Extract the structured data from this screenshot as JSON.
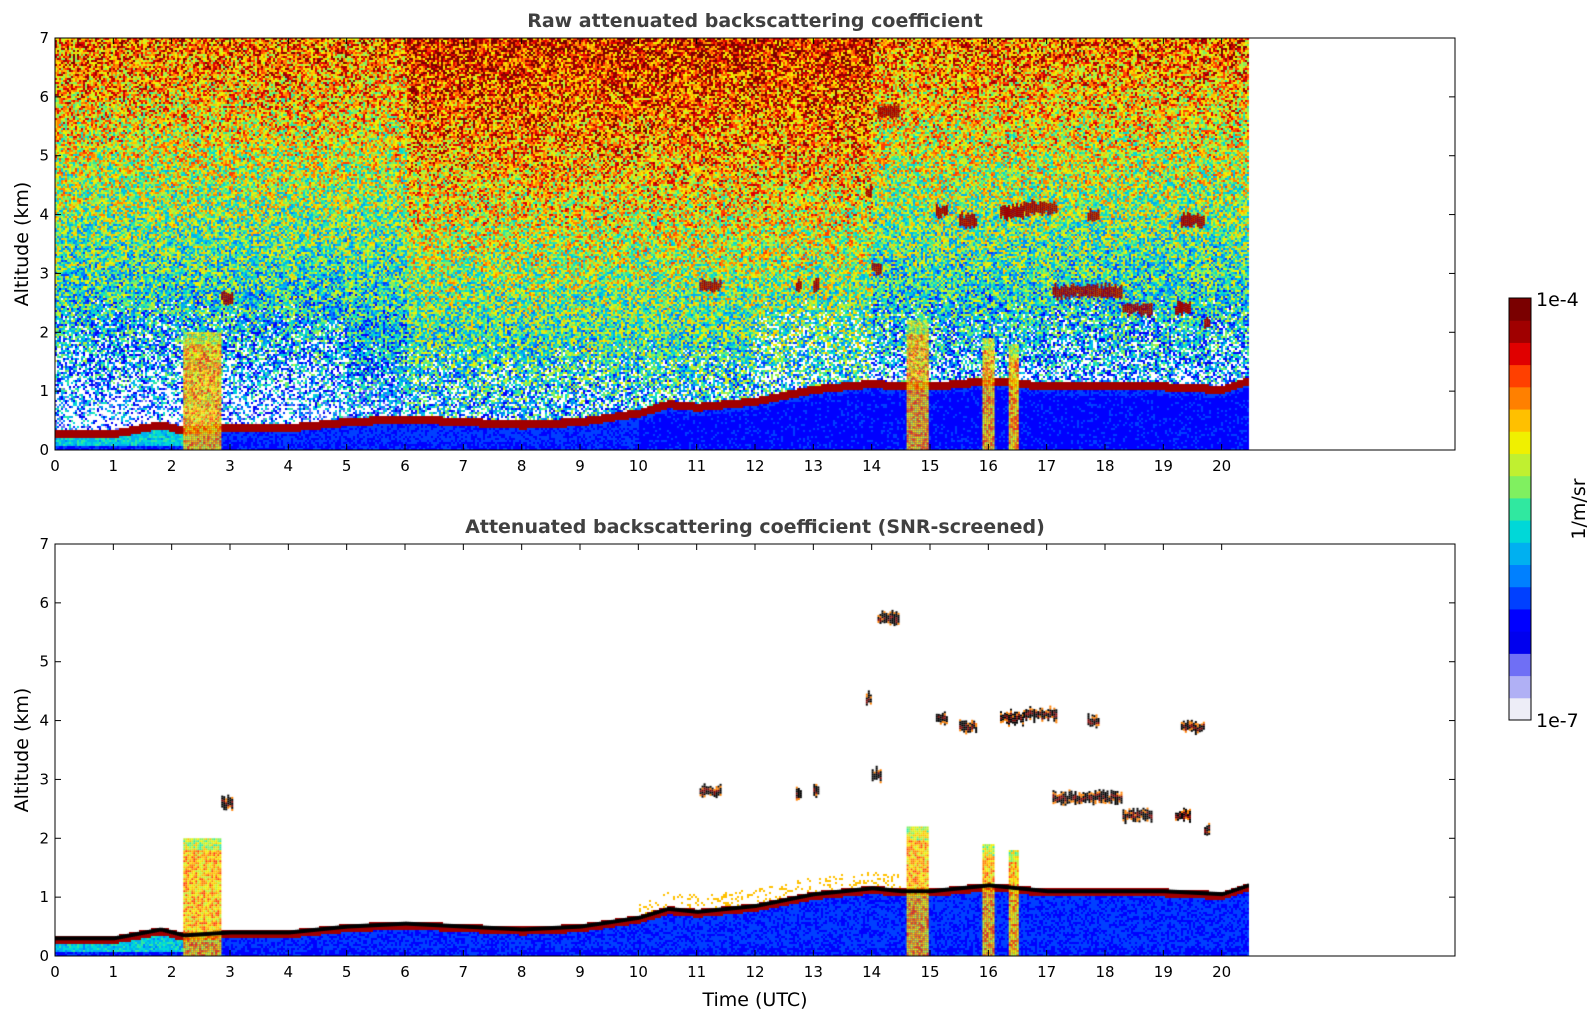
{
  "chart_data": [
    {
      "type": "heatmap",
      "title": "Raw attenuated backscattering coefficient",
      "xlabel": "",
      "ylabel": "Altitude (km)",
      "xlim": [
        0,
        24
      ],
      "ylim": [
        0,
        7
      ],
      "xticks": [
        "0",
        "1",
        "2",
        "3",
        "4",
        "5",
        "6",
        "7",
        "8",
        "9",
        "10",
        "11",
        "12",
        "13",
        "14",
        "15",
        "16",
        "17",
        "18",
        "19",
        "20"
      ],
      "yticks": [
        "0",
        "1",
        "2",
        "3",
        "4",
        "5",
        "6",
        "7"
      ],
      "data_end_time": 20.45,
      "boundary_layer_top_km": [
        [
          0,
          0.3
        ],
        [
          1,
          0.3
        ],
        [
          1.8,
          0.45
        ],
        [
          2.2,
          0.35
        ],
        [
          3,
          0.4
        ],
        [
          4,
          0.4
        ],
        [
          5,
          0.5
        ],
        [
          6,
          0.55
        ],
        [
          7,
          0.5
        ],
        [
          8,
          0.45
        ],
        [
          9,
          0.5
        ],
        [
          10,
          0.65
        ],
        [
          10.5,
          0.8
        ],
        [
          11,
          0.75
        ],
        [
          12,
          0.85
        ],
        [
          13,
          1.05
        ],
        [
          14,
          1.15
        ],
        [
          14.5,
          1.1
        ],
        [
          15,
          1.1
        ],
        [
          16,
          1.2
        ],
        [
          17,
          1.1
        ],
        [
          18,
          1.1
        ],
        [
          19,
          1.1
        ],
        [
          20,
          1.05
        ],
        [
          20.45,
          1.2
        ]
      ],
      "precipitation_columns_h": [
        [
          2.2,
          2.85,
          2.0
        ],
        [
          14.6,
          14.95,
          2.2
        ],
        [
          15.9,
          16.1,
          1.9
        ],
        [
          16.35,
          16.5,
          1.8
        ]
      ],
      "cloud_layers": [
        {
          "start": 14.1,
          "end": 14.45,
          "alt_km": 5.75
        },
        {
          "start": 13.9,
          "end": 14.0,
          "alt_km": 4.4
        },
        {
          "start": 15.5,
          "end": 15.8,
          "alt_km": 3.9
        },
        {
          "start": 15.1,
          "end": 15.3,
          "alt_km": 4.05
        },
        {
          "start": 16.2,
          "end": 16.6,
          "alt_km": 4.05
        },
        {
          "start": 16.6,
          "end": 17.15,
          "alt_km": 4.12
        },
        {
          "start": 17.7,
          "end": 17.9,
          "alt_km": 4.0
        },
        {
          "start": 19.3,
          "end": 19.7,
          "alt_km": 3.9
        },
        {
          "start": 11.05,
          "end": 11.4,
          "alt_km": 2.8
        },
        {
          "start": 12.7,
          "end": 12.8,
          "alt_km": 2.78
        },
        {
          "start": 13.0,
          "end": 13.1,
          "alt_km": 2.8
        },
        {
          "start": 14.0,
          "end": 14.15,
          "alt_km": 3.1
        },
        {
          "start": 17.1,
          "end": 18.3,
          "alt_km": 2.7
        },
        {
          "start": 18.3,
          "end": 18.8,
          "alt_km": 2.4
        },
        {
          "start": 19.2,
          "end": 19.45,
          "alt_km": 2.4
        },
        {
          "start": 19.7,
          "end": 19.8,
          "alt_km": 2.15
        },
        {
          "start": 2.85,
          "end": 3.05,
          "alt_km": 2.6
        }
      ]
    },
    {
      "type": "heatmap",
      "title": "Attenuated backscattering coefficient (SNR-screened)",
      "xlabel": "Time (UTC)",
      "ylabel": "Altitude (km)",
      "xlim": [
        0,
        24
      ],
      "ylim": [
        0,
        7
      ],
      "xticks": [
        "0",
        "1",
        "2",
        "3",
        "4",
        "5",
        "6",
        "7",
        "8",
        "9",
        "10",
        "11",
        "12",
        "13",
        "14",
        "15",
        "16",
        "17",
        "18",
        "19",
        "20"
      ],
      "yticks": [
        "0",
        "1",
        "2",
        "3",
        "4",
        "5",
        "6",
        "7"
      ],
      "data_end_time": 20.45
    }
  ],
  "colorbar": {
    "label": "1/m/sr",
    "max_label": "1e-4",
    "min_label": "1e-7",
    "colormap": [
      "#ededf7",
      "#b0b0f5",
      "#6f6ff5",
      "#0000ee",
      "#0000ff",
      "#0040ff",
      "#0080ff",
      "#00b0f0",
      "#00d8d8",
      "#30e8a0",
      "#80f060",
      "#c0f030",
      "#f0f000",
      "#ffc000",
      "#ff8000",
      "#ff4000",
      "#e00000",
      "#a00000",
      "#7a0000"
    ]
  }
}
